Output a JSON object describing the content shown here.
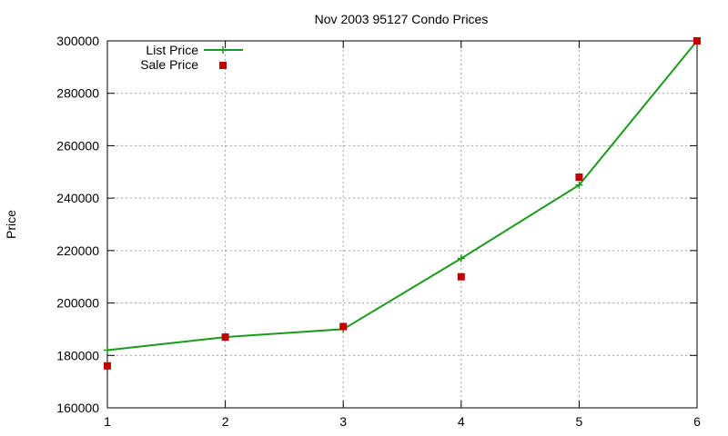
{
  "chart_data": {
    "type": "line",
    "title": "Nov 2003 95127 Condo Prices",
    "xlabel": "",
    "ylabel": "Price",
    "x": [
      1,
      2,
      3,
      4,
      5,
      6
    ],
    "xlim": [
      1,
      6
    ],
    "ylim": [
      160000,
      300000
    ],
    "xticks": [
      "1",
      "2",
      "3",
      "4",
      "5",
      "6"
    ],
    "yticks": [
      "160000",
      "180000",
      "200000",
      "220000",
      "240000",
      "260000",
      "280000",
      "300000"
    ],
    "grid": true,
    "legend_position": "top-left",
    "series": [
      {
        "name": "List Price",
        "type": "line",
        "color": "#1a9a1a",
        "marker": "plus",
        "values": [
          182000,
          187000,
          190000,
          217000,
          245000,
          300000
        ]
      },
      {
        "name": "Sale Price",
        "type": "scatter",
        "color": "#c00000",
        "marker": "square",
        "values": [
          176000,
          187000,
          191000,
          210000,
          248000,
          300000
        ]
      }
    ]
  }
}
